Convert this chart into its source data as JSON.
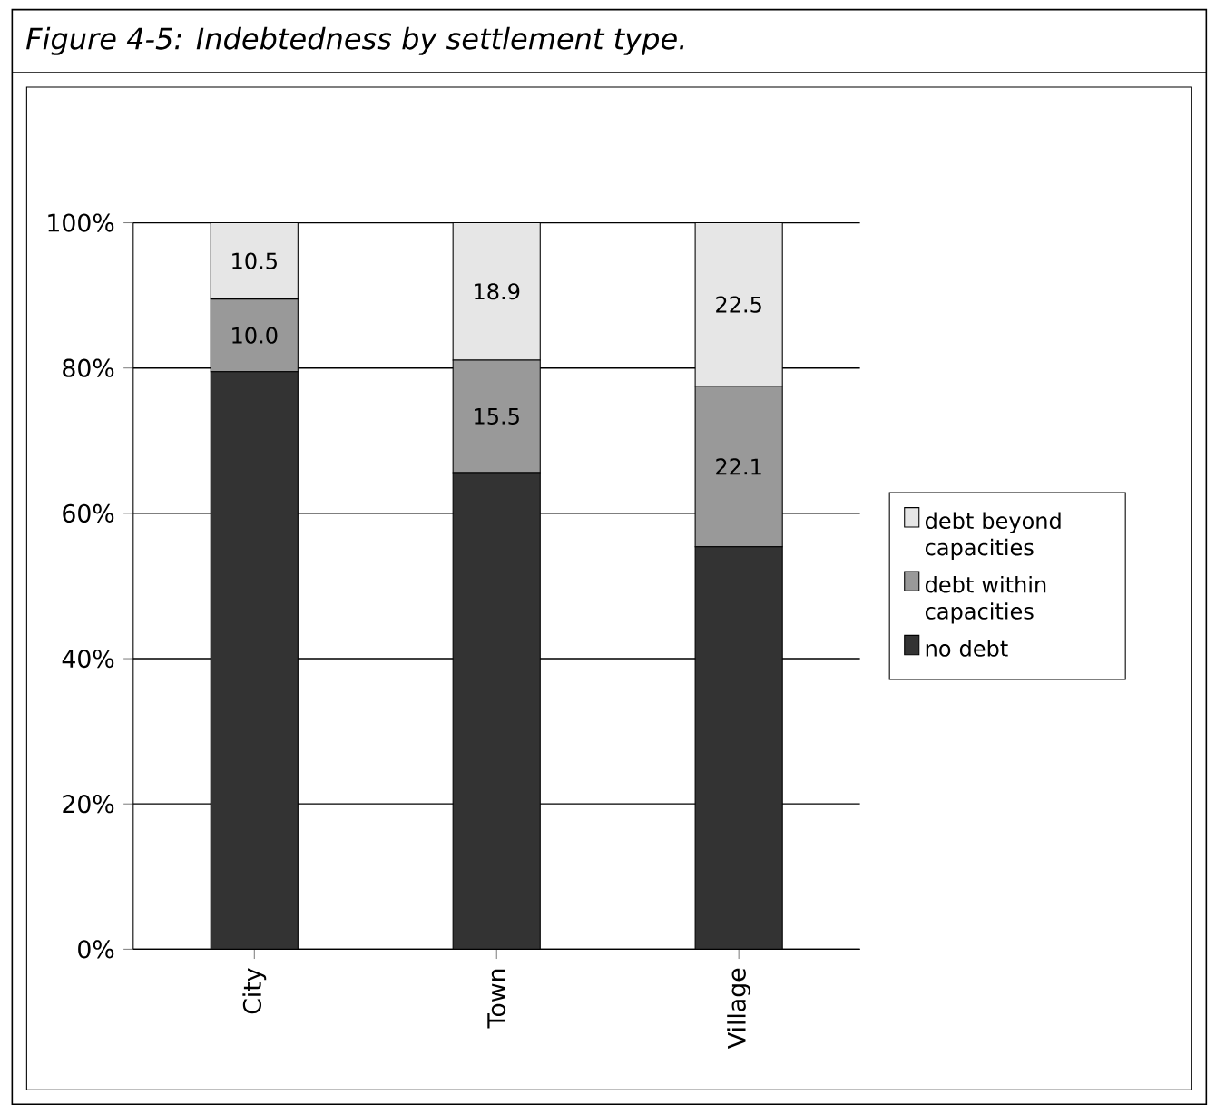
{
  "chart_data": {
    "type": "bar",
    "title": "Figure 4-5: Indebtedness by settlement type.",
    "categories": [
      "City",
      "Town",
      "Village"
    ],
    "stacked": true,
    "series": [
      {
        "name": "no debt",
        "color": "#333333",
        "values": [
          79.5,
          65.6,
          55.4
        ]
      },
      {
        "name": "debt within capacities",
        "color": "#999999",
        "values": [
          10.0,
          15.5,
          22.1
        ],
        "value_labels": [
          "10.0",
          "15.5",
          "22.1"
        ]
      },
      {
        "name": "debt beyond capacities",
        "color": "#e6e6e6",
        "values": [
          10.5,
          18.9,
          22.5
        ],
        "value_labels": [
          "10.5",
          "18.9",
          "22.5"
        ]
      }
    ],
    "ylim": [
      0,
      100
    ],
    "yticks": [
      {
        "value": 0,
        "label": "0%"
      },
      {
        "value": 20,
        "label": "20%"
      },
      {
        "value": 40,
        "label": "40%"
      },
      {
        "value": 60,
        "label": "60%"
      },
      {
        "value": 80,
        "label": "80%"
      },
      {
        "value": 100,
        "label": "100%"
      }
    ],
    "grid": "y",
    "legend": "right"
  }
}
